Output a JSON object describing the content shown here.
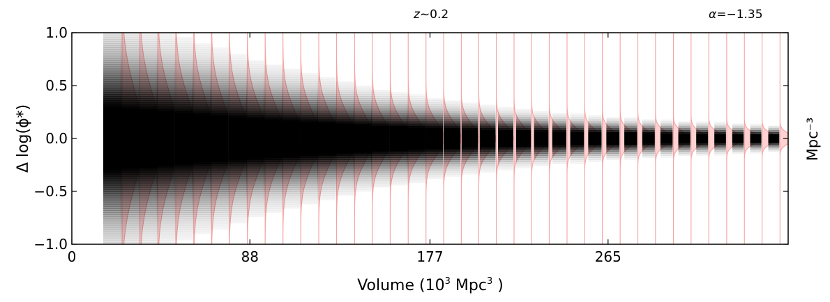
{
  "chart_data": {
    "type": "violin",
    "annotations": {
      "redshift_symbol": "z",
      "redshift_value": "~0.2",
      "alpha_symbol": "α",
      "alpha_value": "=−1.35"
    },
    "xlabel_prefix": "Volume (10",
    "xlabel_exp": "3",
    "xlabel_unit": " Mpc",
    "xlabel_unit_exp": "3",
    "xlabel_suffix": " )",
    "ylabel": "Δ log(ϕ*)",
    "ylabel_right": "Mpc⁻³",
    "xlim": [
      0,
      354
    ],
    "ylim": [
      -1.0,
      1.0
    ],
    "x_ticks": [
      0,
      88,
      177,
      265
    ],
    "x_tick_labels": [
      "0",
      "88",
      "177",
      "265"
    ],
    "y_ticks": [
      1.0,
      0.5,
      0.0,
      -0.5,
      -1.0
    ],
    "y_tick_labels": [
      "1.0",
      "0.5",
      "0.0",
      "−0.5",
      "−1.0"
    ],
    "series": [
      {
        "x": [
          20.0,
          28.8,
          37.7,
          46.5,
          55.4,
          64.2,
          73.0,
          81.9,
          90.7,
          99.5,
          108.3,
          117.2,
          126.0,
          134.9,
          143.7,
          152.5,
          161.4,
          170.2,
          179.0,
          187.9,
          196.7,
          205.5,
          214.4,
          223.2,
          232.0,
          240.9,
          249.7,
          258.5,
          267.4,
          276.2,
          285.0,
          293.9,
          302.7,
          311.5,
          320.4,
          329.2,
          338.0,
          346.9
        ],
        "spread": [
          0.45,
          0.42,
          0.4,
          0.38,
          0.36,
          0.34,
          0.32,
          0.3,
          0.28,
          0.265,
          0.25,
          0.235,
          0.22,
          0.205,
          0.19,
          0.175,
          0.165,
          0.155,
          0.145,
          0.135,
          0.125,
          0.118,
          0.11,
          0.104,
          0.098,
          0.092,
          0.087,
          0.082,
          0.078,
          0.074,
          0.07,
          0.066,
          0.063,
          0.06,
          0.057,
          0.054,
          0.051,
          0.048
        ]
      }
    ],
    "colors": {
      "violin_fill": "#ffc9c9",
      "violin_edge": "#f4a3a3",
      "density": "#000000"
    }
  }
}
